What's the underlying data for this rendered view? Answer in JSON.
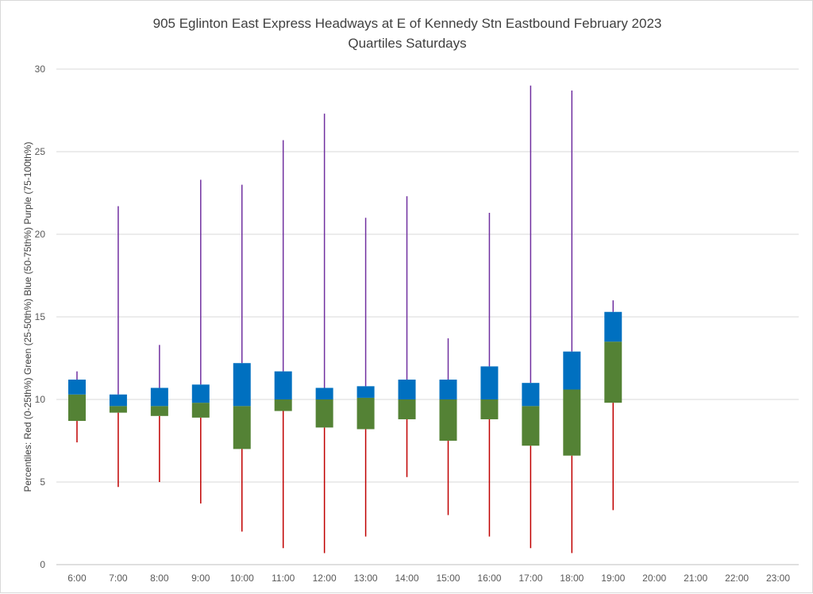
{
  "chart_data": {
    "type": "box-quartile",
    "title": "905 Eglinton East Express Headways at E of Kennedy Stn Eastbound February 2023",
    "subtitle": "Quartiles Saturdays",
    "xlabel": "",
    "ylabel": "Percentiles:  Red (0-25th%)  Green (25-50th%)  Blue (50-75th%)  Purple (75-100th%)",
    "ylim": [
      0,
      30
    ],
    "yticks": [
      "0",
      "5",
      "10",
      "15",
      "20",
      "25",
      "30"
    ],
    "categories": [
      "6:00",
      "7:00",
      "8:00",
      "9:00",
      "10:00",
      "11:00",
      "12:00",
      "13:00",
      "14:00",
      "15:00",
      "16:00",
      "17:00",
      "18:00",
      "19:00",
      "20:00",
      "21:00",
      "22:00",
      "23:00"
    ],
    "min": [
      7.4,
      4.7,
      5.0,
      3.7,
      2.0,
      1.0,
      0.7,
      1.7,
      5.3,
      3.0,
      1.7,
      1.0,
      0.7,
      3.3,
      null,
      null,
      null,
      null
    ],
    "q1": [
      8.7,
      9.2,
      9.0,
      8.9,
      7.0,
      9.3,
      8.3,
      8.2,
      8.8,
      7.5,
      8.8,
      7.2,
      6.6,
      9.8,
      null,
      null,
      null,
      null
    ],
    "median": [
      10.3,
      9.6,
      9.6,
      9.8,
      9.6,
      10.0,
      10.0,
      10.1,
      10.0,
      10.0,
      10.0,
      9.6,
      10.6,
      13.5,
      null,
      null,
      null,
      null
    ],
    "q3": [
      11.2,
      10.3,
      10.7,
      10.9,
      12.2,
      11.7,
      10.7,
      10.8,
      11.2,
      11.2,
      12.0,
      11.0,
      12.9,
      15.3,
      null,
      null,
      null,
      null
    ],
    "max": [
      11.7,
      21.7,
      13.3,
      23.3,
      23.0,
      25.7,
      27.3,
      21.0,
      22.3,
      13.7,
      21.3,
      29.0,
      28.7,
      16.0,
      null,
      null,
      null,
      null
    ],
    "colors": {
      "whisker_low": "#c00000",
      "box_low": "#548235",
      "box_high": "#0070c0",
      "whisker_high": "#7030a0",
      "grid": "#d9d9d9",
      "axis": "#bfbfbf"
    }
  }
}
